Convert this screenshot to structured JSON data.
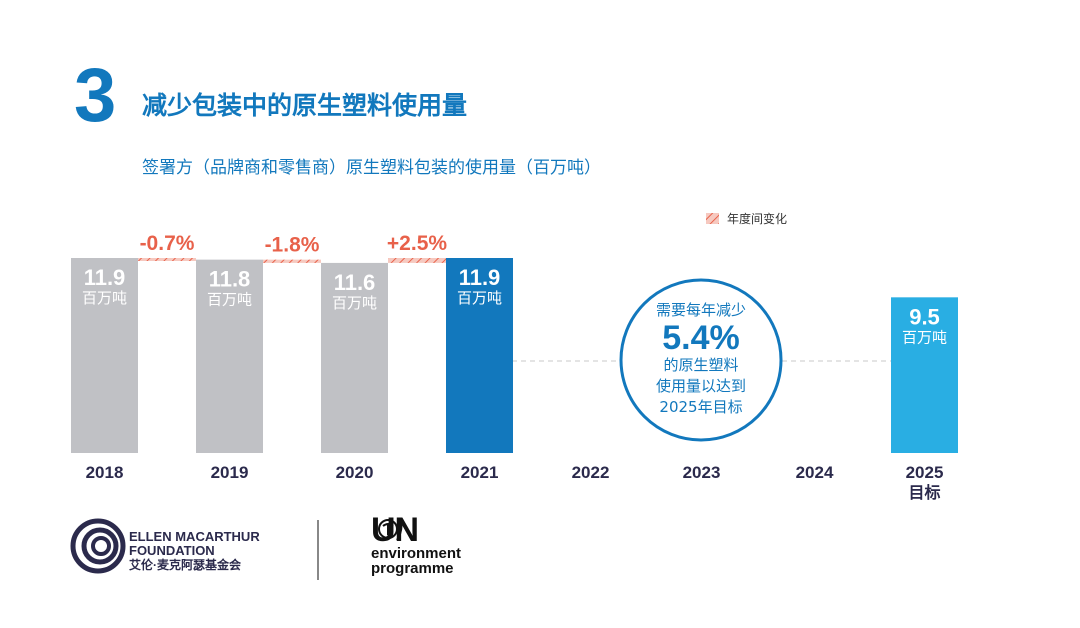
{
  "header": {
    "number": "3",
    "title": "减少包装中的原生塑料使用量",
    "subtitle": "签署方（品牌商和零售商）原生塑料包装的使用量（百万吨）"
  },
  "chart_data": {
    "type": "bar",
    "title": "减少包装中的原生塑料使用量",
    "subtitle": "签署方（品牌商和零售商）原生塑料包装的使用量（百万吨）",
    "categories": [
      "2018",
      "2019",
      "2020",
      "2021",
      "2022",
      "2023",
      "2024",
      "2025"
    ],
    "category_sublabels": {
      "2025": "目标"
    },
    "values": [
      11.9,
      11.8,
      11.6,
      11.9,
      null,
      null,
      null,
      9.5
    ],
    "value_labels": [
      "11.9",
      "11.8",
      "11.6",
      "11.9",
      null,
      null,
      null,
      "9.5"
    ],
    "unit": "百万吨",
    "bar_colors": [
      "#c0c1c5",
      "#c0c1c5",
      "#c0c1c5",
      "#1278bd",
      null,
      null,
      null,
      "#29aee3"
    ],
    "changes": [
      {
        "from": "2018",
        "to": "2019",
        "label": "-0.7%"
      },
      {
        "from": "2019",
        "to": "2020",
        "label": "-1.8%"
      },
      {
        "from": "2020",
        "to": "2021",
        "label": "+2.5%"
      }
    ],
    "change_color": "#e8614a",
    "legend": {
      "label": "年度间变化",
      "placement": "top-right"
    },
    "annotation": {
      "line1": "需要每年减少",
      "value": "5.4%",
      "line2": "的原生塑料",
      "line3": "使用量以达到",
      "line4": "2025年目标"
    },
    "ylim": [
      0,
      11.9
    ],
    "grid": false
  },
  "logos": {
    "emf_line1": "ELLEN MACARTHUR",
    "emf_line2": "FOUNDATION",
    "emf_cn": "艾伦·麦克阿瑟基金会",
    "un_line1": "UN",
    "un_line2": "environment",
    "un_line3": "programme"
  }
}
